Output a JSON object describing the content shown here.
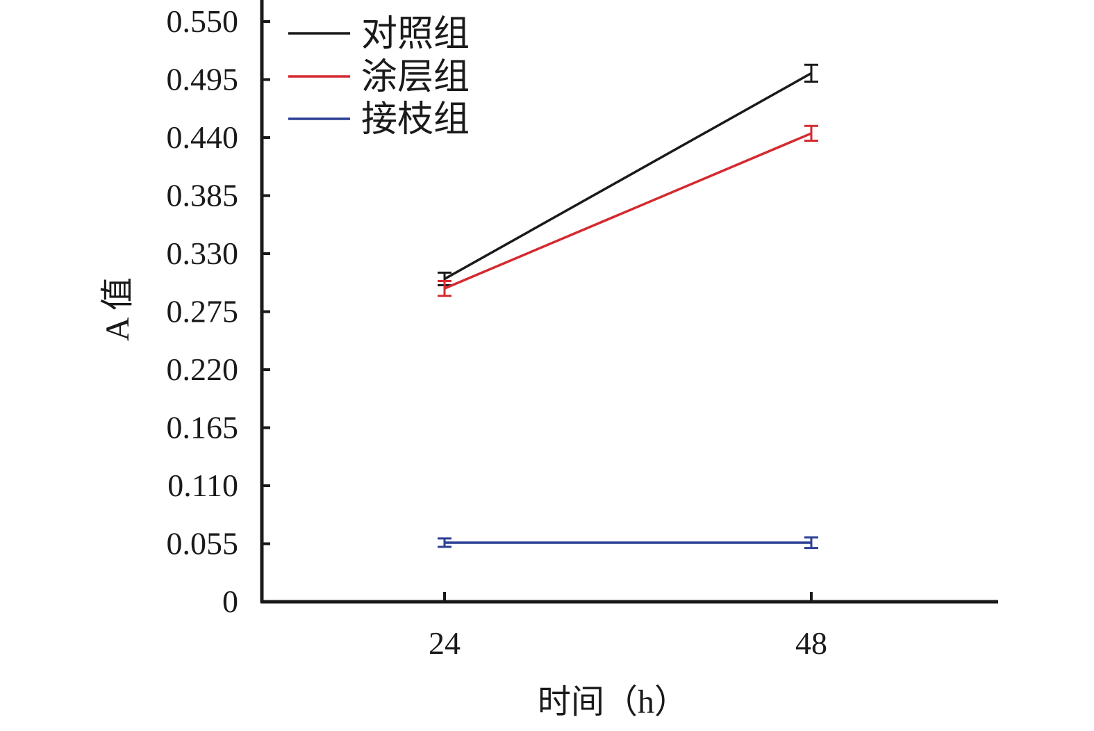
{
  "chart_data": {
    "type": "line",
    "title": "",
    "xlabel": "时间（h）",
    "ylabel": "A 值",
    "categories": [
      "24",
      "48"
    ],
    "ylim": [
      0,
      0.55
    ],
    "yticks": [
      "0",
      "0.055",
      "0.110",
      "0.165",
      "0.220",
      "0.275",
      "0.330",
      "0.385",
      "0.440",
      "0.495",
      "0.550"
    ],
    "grid": false,
    "legend_position": "top-left",
    "series": [
      {
        "name": "对照组",
        "color": "#1a1a1a",
        "values": [
          0.306,
          0.501
        ],
        "errors": [
          0.006,
          0.008
        ]
      },
      {
        "name": "涂层组",
        "color": "#d42a2f",
        "values": [
          0.297,
          0.444
        ],
        "errors": [
          0.007,
          0.007
        ]
      },
      {
        "name": "接枝组",
        "color": "#2b3f94",
        "values": [
          0.056,
          0.056
        ],
        "errors": [
          0.004,
          0.005
        ]
      }
    ]
  }
}
